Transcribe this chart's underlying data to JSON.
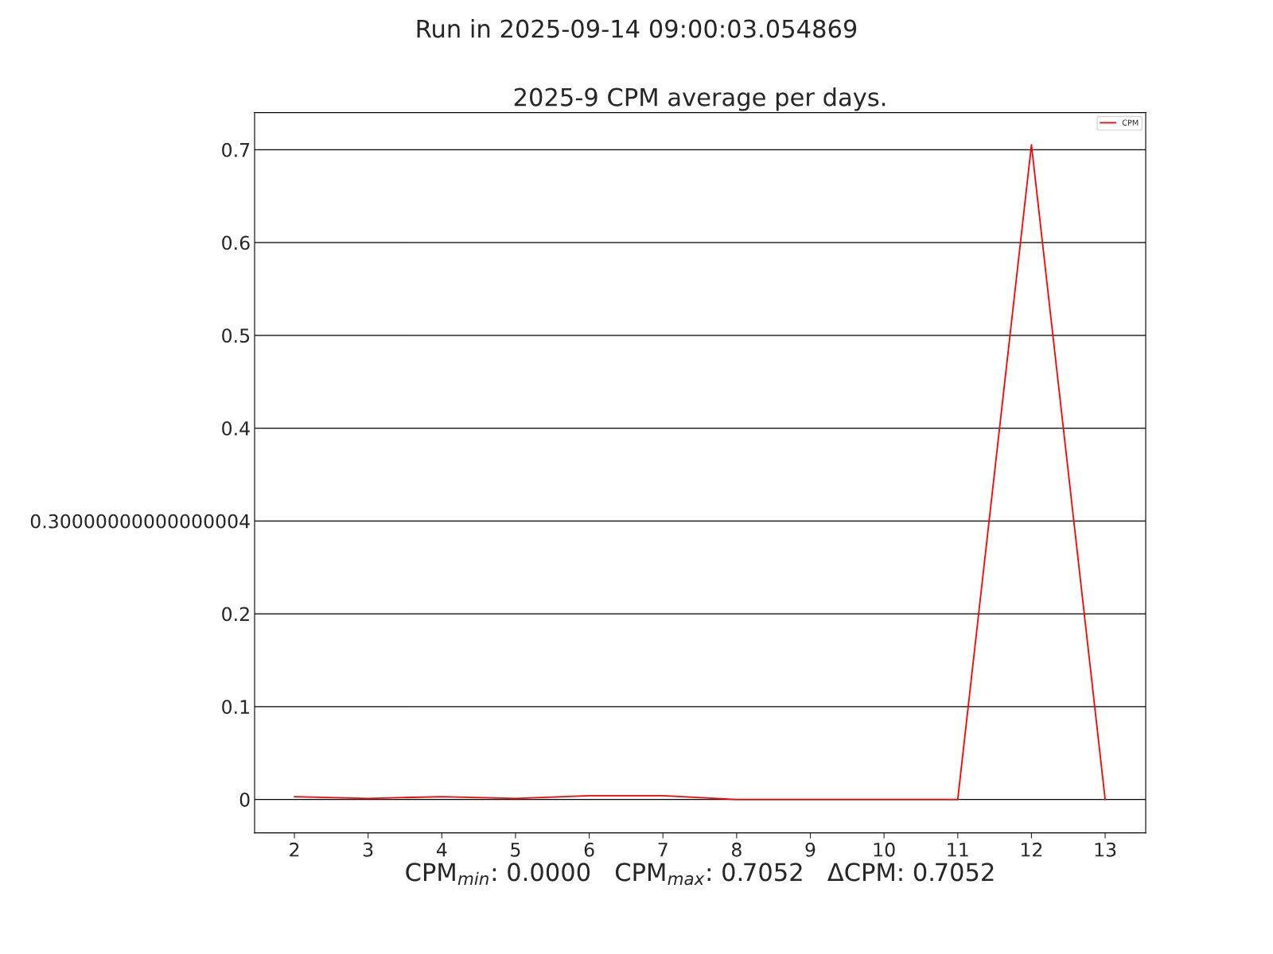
{
  "chart_data": {
    "type": "line",
    "title": "Run in 2025-09-14 09:00:03.054869",
    "subtitle": "2025-9 CPM average per days.",
    "xlabel": "CPM$_{min}$: 0.0000   CPM$_{max}$: 0.7052   ΔCPM: 0.7052",
    "x": [
      2,
      3,
      4,
      5,
      6,
      7,
      8,
      9,
      10,
      11,
      12,
      13
    ],
    "series": [
      {
        "name": "CPM",
        "color": "#ff0000",
        "values": [
          0.003,
          0.001,
          0.003,
          0.001,
          0.004,
          0.004,
          0,
          0,
          0,
          0,
          0.7052,
          0
        ]
      }
    ],
    "xlim": [
      1.46,
      13.55
    ],
    "ylim": [
      -0.036,
      0.74
    ],
    "xticks": [
      2,
      3,
      4,
      5,
      6,
      7,
      8,
      9,
      10,
      11,
      12,
      13
    ],
    "yticks": [
      0,
      0.1,
      0.2,
      {
        "value": 0.3,
        "label": "0.30000000000000004"
      },
      0.4,
      0.5,
      0.6,
      0.7
    ],
    "grid": "y",
    "legend": "top right",
    "marker": "none",
    "line_style": "solid"
  }
}
